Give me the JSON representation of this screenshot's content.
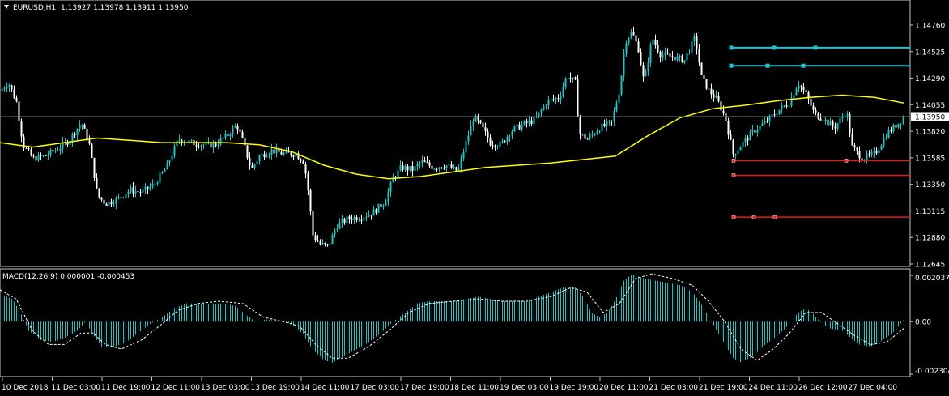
{
  "header": {
    "symbol_label": "EURUSD,H1",
    "ohlc": "1.13927 1.13978 1.13911 1.13950",
    "arrow_icon": "triangle-down-icon"
  },
  "macd_header": {
    "label": "MACD(12,26,9) 0.000001 -0.000453"
  },
  "colors": {
    "background": "#000000",
    "candle": "#1fc3c3",
    "candle_white": "#ffffff",
    "ma": "#ffff00",
    "level_upper": "#23c2d2",
    "level_lower": "#e51a1a",
    "grid_border": "#c8c8c8",
    "current_price_bg": "#ffffff"
  },
  "price_axis": {
    "ticks": [
      "1.14760",
      "1.14525",
      "1.14290",
      "1.14055",
      "1.13820",
      "1.13585",
      "1.13350",
      "1.13115",
      "1.12880",
      "1.12645"
    ],
    "current_price": "1.13950"
  },
  "macd_axis": {
    "ticks": [
      "0.002037",
      "0.00",
      "-0.002304"
    ]
  },
  "time_axis": {
    "labels": [
      "10 Dec 2018",
      "11 Dec 03:00",
      "11 Dec 19:00",
      "12 Dec 11:00",
      "13 Dec 03:00",
      "13 Dec 19:00",
      "14 Dec 11:00",
      "17 Dec 03:00",
      "17 Dec 19:00",
      "18 Dec 11:00",
      "19 Dec 03:00",
      "19 Dec 19:00",
      "20 Dec 11:00",
      "21 Dec 03:00",
      "21 Dec 19:00",
      "24 Dec 11:00",
      "26 Dec 12:00",
      "27 Dec 04:00"
    ]
  },
  "chart_data": {
    "type": "candlestick",
    "price_range": [
      1.1264,
      1.1488
    ],
    "ma_curve": [
      [
        0,
        1.1372
      ],
      [
        40,
        1.1368
      ],
      [
        80,
        1.1372
      ],
      [
        120,
        1.1376
      ],
      [
        160,
        1.1374
      ],
      [
        200,
        1.1372
      ],
      [
        240,
        1.1372
      ],
      [
        280,
        1.1372
      ],
      [
        320,
        1.137
      ],
      [
        360,
        1.1364
      ],
      [
        400,
        1.1352
      ],
      [
        440,
        1.1344
      ],
      [
        480,
        1.134
      ],
      [
        520,
        1.1342
      ],
      [
        560,
        1.1346
      ],
      [
        600,
        1.135
      ],
      [
        640,
        1.1352
      ],
      [
        680,
        1.1354
      ],
      [
        720,
        1.1357
      ],
      [
        760,
        1.136
      ],
      [
        800,
        1.1378
      ],
      [
        840,
        1.1394
      ],
      [
        880,
        1.1402
      ],
      [
        920,
        1.1405
      ],
      [
        960,
        1.1409
      ],
      [
        1000,
        1.1412
      ],
      [
        1040,
        1.1414
      ],
      [
        1080,
        1.1412
      ],
      [
        1116,
        1.1407
      ]
    ],
    "close_path": [
      [
        0,
        1.1418
      ],
      [
        10,
        1.1425
      ],
      [
        20,
        1.1408
      ],
      [
        28,
        1.137
      ],
      [
        40,
        1.1358
      ],
      [
        55,
        1.136
      ],
      [
        70,
        1.1366
      ],
      [
        85,
        1.1374
      ],
      [
        100,
        1.139
      ],
      [
        110,
        1.137
      ],
      [
        120,
        1.1325
      ],
      [
        130,
        1.1318
      ],
      [
        145,
        1.1322
      ],
      [
        160,
        1.133
      ],
      [
        175,
        1.1328
      ],
      [
        190,
        1.1335
      ],
      [
        205,
        1.135
      ],
      [
        220,
        1.1375
      ],
      [
        235,
        1.1372
      ],
      [
        250,
        1.137
      ],
      [
        265,
        1.137
      ],
      [
        280,
        1.1378
      ],
      [
        292,
        1.1388
      ],
      [
        300,
        1.1372
      ],
      [
        310,
        1.1348
      ],
      [
        320,
        1.136
      ],
      [
        335,
        1.1365
      ],
      [
        350,
        1.1362
      ],
      [
        365,
        1.1362
      ],
      [
        375,
        1.1355
      ],
      [
        380,
        1.133
      ],
      [
        386,
        1.129
      ],
      [
        395,
        1.1282
      ],
      [
        405,
        1.128
      ],
      [
        415,
        1.1298
      ],
      [
        430,
        1.1305
      ],
      [
        445,
        1.1306
      ],
      [
        460,
        1.131
      ],
      [
        475,
        1.132
      ],
      [
        485,
        1.134
      ],
      [
        495,
        1.135
      ],
      [
        510,
        1.1348
      ],
      [
        520,
        1.1355
      ],
      [
        535,
        1.135
      ],
      [
        550,
        1.1352
      ],
      [
        565,
        1.1346
      ],
      [
        575,
        1.1372
      ],
      [
        585,
        1.1395
      ],
      [
        595,
        1.1385
      ],
      [
        605,
        1.1372
      ],
      [
        618,
        1.137
      ],
      [
        630,
        1.1382
      ],
      [
        645,
        1.1388
      ],
      [
        660,
        1.1392
      ],
      [
        675,
        1.1408
      ],
      [
        690,
        1.1412
      ],
      [
        700,
        1.1432
      ],
      [
        710,
        1.1425
      ],
      [
        715,
        1.138
      ],
      [
        725,
        1.1375
      ],
      [
        740,
        1.1385
      ],
      [
        755,
        1.139
      ],
      [
        765,
        1.142
      ],
      [
        772,
        1.1462
      ],
      [
        780,
        1.147
      ],
      [
        788,
        1.1455
      ],
      [
        795,
        1.1425
      ],
      [
        805,
        1.1465
      ],
      [
        815,
        1.145
      ],
      [
        830,
        1.1448
      ],
      [
        845,
        1.1445
      ],
      [
        858,
        1.1465
      ],
      [
        866,
        1.143
      ],
      [
        875,
        1.1418
      ],
      [
        885,
        1.141
      ],
      [
        895,
        1.1395
      ],
      [
        905,
        1.1362
      ],
      [
        915,
        1.137
      ],
      [
        930,
        1.1382
      ],
      [
        945,
        1.139
      ],
      [
        960,
        1.14
      ],
      [
        975,
        1.1408
      ],
      [
        985,
        1.1425
      ],
      [
        995,
        1.1415
      ],
      [
        1005,
        1.1398
      ],
      [
        1018,
        1.1392
      ],
      [
        1030,
        1.1385
      ],
      [
        1045,
        1.14
      ],
      [
        1052,
        1.1368
      ],
      [
        1065,
        1.1358
      ],
      [
        1080,
        1.1362
      ],
      [
        1095,
        1.138
      ],
      [
        1110,
        1.139
      ],
      [
        1116,
        1.1395
      ]
    ],
    "upper_levels": [
      {
        "price": 1.1456,
        "x_start": 903,
        "x_end": 1124,
        "markers": [
          903,
          956,
          1007
        ]
      },
      {
        "price": 1.144,
        "x_start": 903,
        "x_end": 1124,
        "markers": [
          903,
          948,
          992
        ]
      }
    ],
    "lower_levels": [
      {
        "price": 1.1356,
        "x_start": 906,
        "x_end": 1124,
        "markers": [
          906,
          1045
        ]
      },
      {
        "price": 1.1343,
        "x_start": 906,
        "x_end": 1124,
        "markers": [
          906
        ]
      },
      {
        "price": 1.1306,
        "x_start": 906,
        "x_end": 1124,
        "markers": [
          906,
          931,
          957
        ]
      }
    ],
    "macd_range": [
      -0.002304,
      0.002037
    ],
    "macd_hist": [
      [
        0,
        0.0012
      ],
      [
        15,
        0.001
      ],
      [
        25,
        0.0004
      ],
      [
        35,
        -0.0004
      ],
      [
        50,
        -0.0008
      ],
      [
        65,
        -0.0009
      ],
      [
        80,
        -0.0007
      ],
      [
        95,
        -0.0004
      ],
      [
        105,
        0.0
      ],
      [
        115,
        -0.0006
      ],
      [
        125,
        -0.0011
      ],
      [
        140,
        -0.0011
      ],
      [
        155,
        -0.0009
      ],
      [
        170,
        -0.0005
      ],
      [
        185,
        -0.0001
      ],
      [
        200,
        0.0002
      ],
      [
        215,
        0.0006
      ],
      [
        230,
        0.0008
      ],
      [
        245,
        0.0008
      ],
      [
        260,
        0.0008
      ],
      [
        275,
        0.0008
      ],
      [
        290,
        0.0007
      ],
      [
        300,
        0.0004
      ],
      [
        315,
        0.0
      ],
      [
        330,
        0.0001
      ],
      [
        345,
        0.0
      ],
      [
        360,
        -0.0001
      ],
      [
        375,
        -0.0006
      ],
      [
        385,
        -0.0012
      ],
      [
        400,
        -0.0017
      ],
      [
        410,
        -0.0018
      ],
      [
        425,
        -0.0015
      ],
      [
        440,
        -0.0012
      ],
      [
        455,
        -0.0009
      ],
      [
        470,
        -0.0005
      ],
      [
        485,
        0.0
      ],
      [
        500,
        0.0004
      ],
      [
        515,
        0.0008
      ],
      [
        530,
        0.0009
      ],
      [
        545,
        0.0009
      ],
      [
        560,
        0.0009
      ],
      [
        575,
        0.001
      ],
      [
        590,
        0.0011
      ],
      [
        605,
        0.001
      ],
      [
        620,
        0.0009
      ],
      [
        635,
        0.0009
      ],
      [
        650,
        0.0009
      ],
      [
        665,
        0.0011
      ],
      [
        680,
        0.0013
      ],
      [
        695,
        0.0015
      ],
      [
        710,
        0.0015
      ],
      [
        720,
        0.0011
      ],
      [
        730,
        0.0004
      ],
      [
        740,
        0.0002
      ],
      [
        750,
        0.0004
      ],
      [
        760,
        0.001
      ],
      [
        770,
        0.0018
      ],
      [
        780,
        0.0021
      ],
      [
        795,
        0.0019
      ],
      [
        810,
        0.0018
      ],
      [
        825,
        0.0017
      ],
      [
        840,
        0.0016
      ],
      [
        855,
        0.0013
      ],
      [
        865,
        0.0008
      ],
      [
        875,
        0.0002
      ],
      [
        885,
        -0.0004
      ],
      [
        895,
        -0.001
      ],
      [
        905,
        -0.0016
      ],
      [
        915,
        -0.0018
      ],
      [
        930,
        -0.0015
      ],
      [
        945,
        -0.001
      ],
      [
        960,
        -0.0006
      ],
      [
        975,
        -0.0001
      ],
      [
        985,
        0.0004
      ],
      [
        995,
        0.0006
      ],
      [
        1005,
        0.0003
      ],
      [
        1015,
        -0.0001
      ],
      [
        1025,
        -0.0003
      ],
      [
        1040,
        -0.0004
      ],
      [
        1050,
        -0.0007
      ],
      [
        1060,
        -0.001
      ],
      [
        1075,
        -0.0011
      ],
      [
        1090,
        -0.0008
      ],
      [
        1105,
        -0.0004
      ],
      [
        1116,
        0.0001
      ]
    ],
    "macd_signal": [
      [
        0,
        0.0014
      ],
      [
        20,
        0.001
      ],
      [
        40,
        -0.0004
      ],
      [
        60,
        -0.001
      ],
      [
        80,
        -0.001
      ],
      [
        100,
        -0.0005
      ],
      [
        115,
        -0.0005
      ],
      [
        130,
        -0.001
      ],
      [
        150,
        -0.0012
      ],
      [
        175,
        -0.0008
      ],
      [
        200,
        -0.0001
      ],
      [
        220,
        0.0005
      ],
      [
        245,
        0.0008
      ],
      [
        270,
        0.0009
      ],
      [
        300,
        0.0008
      ],
      [
        325,
        0.0002
      ],
      [
        350,
        0.0
      ],
      [
        370,
        -0.0002
      ],
      [
        390,
        -0.001
      ],
      [
        410,
        -0.0016
      ],
      [
        430,
        -0.0016
      ],
      [
        455,
        -0.0011
      ],
      [
        480,
        -0.0004
      ],
      [
        505,
        0.0004
      ],
      [
        530,
        0.0008
      ],
      [
        560,
        0.0009
      ],
      [
        590,
        0.001
      ],
      [
        620,
        0.0009
      ],
      [
        650,
        0.0009
      ],
      [
        680,
        0.0011
      ],
      [
        705,
        0.0015
      ],
      [
        725,
        0.0013
      ],
      [
        745,
        0.0004
      ],
      [
        765,
        0.0008
      ],
      [
        785,
        0.0019
      ],
      [
        805,
        0.0021
      ],
      [
        830,
        0.0019
      ],
      [
        855,
        0.0016
      ],
      [
        875,
        0.0009
      ],
      [
        895,
        0.0
      ],
      [
        915,
        -0.0012
      ],
      [
        935,
        -0.0017
      ],
      [
        955,
        -0.0012
      ],
      [
        975,
        -0.0005
      ],
      [
        995,
        0.0004
      ],
      [
        1015,
        0.0004
      ],
      [
        1035,
        -0.0001
      ],
      [
        1055,
        -0.0006
      ],
      [
        1075,
        -0.001
      ],
      [
        1095,
        -0.0009
      ],
      [
        1116,
        -0.0003
      ]
    ]
  }
}
